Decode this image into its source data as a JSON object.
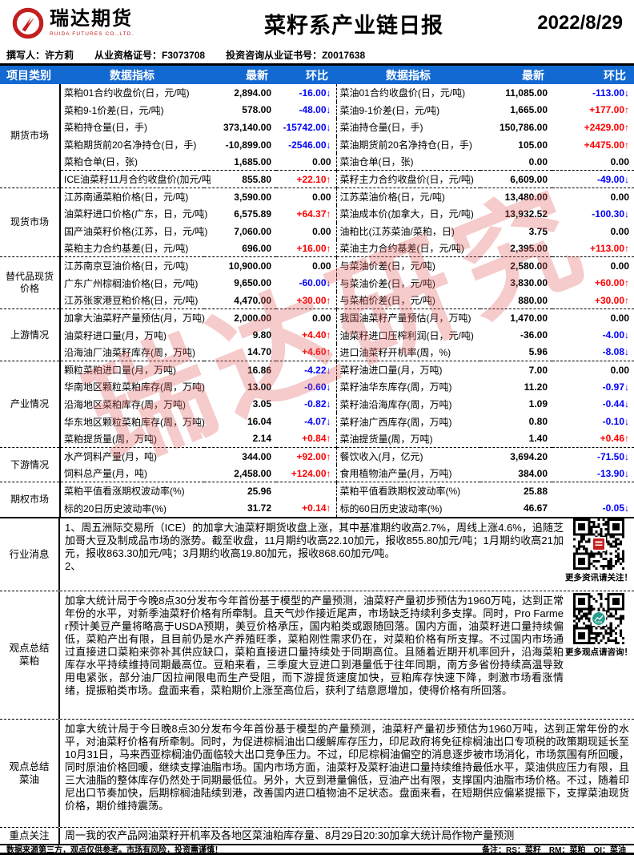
{
  "header": {
    "logo_text": "瑞达期货",
    "logo_subtext": "RUIDA FUTURES CO.,LTD.",
    "title": "菜籽系产业链日报",
    "date": "2022/8/29"
  },
  "info": {
    "author": "撰写人：许方莉",
    "cert1": "从业资格证号：F3073708",
    "cert2": "投资咨询从业证书号：Z0017638"
  },
  "table": {
    "headers": [
      "项目类别",
      "数据指标",
      "最新",
      "环比",
      "数据指标",
      "最新",
      "环比"
    ],
    "sections": [
      {
        "category": [
          "期货市场"
        ],
        "rows": [
          {
            "l": [
              "菜粕01合约收盘价(日，元/吨)",
              "2,894.00",
              "-16.00↓"
            ],
            "r": [
              "菜油01合约收盘价(日，元/吨)",
              "11,085.00",
              "-113.00↓"
            ]
          },
          {
            "l": [
              "菜粕9-1价差(日，元/吨)",
              "578.00",
              "-48.00↓"
            ],
            "r": [
              "菜油9-1价差(日，元/吨)",
              "1,665.00",
              "+177.00↑"
            ]
          },
          {
            "l": [
              "菜粕持仓量(日，手)",
              "373,140.00",
              "-15742.00↓"
            ],
            "r": [
              "菜油持仓量(日，手)",
              "150,786.00",
              "+2429.00↑"
            ]
          },
          {
            "l": [
              "菜粕期货前20名净持仓(日，手)",
              "-10,899.00",
              "-2546.00↓"
            ],
            "r": [
              "菜油期货前20名净持仓(日，手)",
              "105.00",
              "+4475.00↑"
            ]
          },
          {
            "l": [
              "菜粕仓单(日，张)",
              "1,685.00",
              "0.00"
            ],
            "r": [
              "菜油仓单(日，张)",
              "0.00",
              "0.00"
            ]
          },
          {
            "l": [
              "ICE油菜籽11月合约收盘价(加元/吨",
              "855.80",
              "+22.10↑"
            ],
            "r": [
              "菜籽主力合约收盘价(日，元/吨)",
              "6,609.00",
              "-49.00↓"
            ],
            "sep": true
          }
        ]
      },
      {
        "category": [
          "现货市场"
        ],
        "rows": [
          {
            "l": [
              "江苏南通菜粕价格(日，元/吨)",
              "3,590.00",
              "0.00"
            ],
            "r": [
              "江苏菜油价格(日，元/吨)",
              "13,480.00",
              "0.00"
            ]
          },
          {
            "l": [
              "油菜籽进口价格(广东，日，元/吨)",
              "6,575.89",
              "+64.37↑"
            ],
            "r": [
              "菜油成本价(加拿大，日，元/吨)",
              "13,932.52",
              "-100.30↓"
            ]
          },
          {
            "l": [
              "国产油菜籽价格(江苏，日，元/吨)",
              "7,060.00",
              "0.00"
            ],
            "r": [
              "油粕比(江苏菜油/菜粕，日)",
              "3.75",
              "0.00"
            ]
          },
          {
            "l": [
              "菜粕主力合约基差(日，元/吨)",
              "696.00",
              "+16.00↑"
            ],
            "r": [
              "菜油主力合约基差(日，元/吨)",
              "2,395.00",
              "+113.00↑"
            ]
          }
        ]
      },
      {
        "category": [
          "替代品现货",
          "价格"
        ],
        "rows": [
          {
            "l": [
              "江苏南京豆油价格(日，元/吨)",
              "10,900.00",
              "0.00"
            ],
            "r": [
              "与菜油价差(日，元/吨)",
              "2,580.00",
              "0.00"
            ]
          },
          {
            "l": [
              "广东广州棕榈油价格(日，元/吨)",
              "9,650.00",
              "-60.00↓"
            ],
            "r": [
              "与菜油价差(日，元/吨)",
              "3,830.00",
              "+60.00↑"
            ]
          },
          {
            "l": [
              "江苏张家港豆粕价格(日，元/吨)",
              "4,470.00",
              "+30.00↑"
            ],
            "r": [
              "与菜粕价差(日，元/吨)",
              "880.00",
              "+30.00↑"
            ]
          }
        ]
      },
      {
        "category": [
          "上游情况"
        ],
        "rows": [
          {
            "l": [
              "加拿大油菜籽产量预估(月，万吨)",
              "2,000.00",
              "0.00"
            ],
            "r": [
              "我国油菜籽产量预估(月，万吨)",
              "1,470.00",
              "0.00"
            ]
          },
          {
            "l": [
              "油菜籽进口量(月，万吨)",
              "9.80",
              "+4.40↑"
            ],
            "r": [
              "油菜籽进口压榨利润(日，元/吨)",
              "-36.00",
              "-4.00↓"
            ]
          },
          {
            "l": [
              "沿海油厂油菜籽库存(周，万吨)",
              "14.70",
              "+4.60↑"
            ],
            "r": [
              "进口油菜籽开机率(周，%)",
              "5.96",
              "-8.08↓"
            ]
          }
        ]
      },
      {
        "category": [
          "产业情况"
        ],
        "rows": [
          {
            "l": [
              "颗粒菜粕进口量(月，万吨)",
              "16.86",
              "-4.22↓"
            ],
            "r": [
              "菜籽油进口量(月，万吨)",
              "7.00",
              "0.00"
            ]
          },
          {
            "l": [
              "华南地区颗粒菜粕库存(周，万吨)",
              "13.00",
              "-0.60↓"
            ],
            "r": [
              "菜籽油华东库存(周，万吨)",
              "11.20",
              "-0.97↓"
            ]
          },
          {
            "l": [
              "沿海地区菜粕库存(周，万吨)",
              "3.05",
              "-0.82↓"
            ],
            "r": [
              "菜籽油沿海库存(周，万吨)",
              "1.09",
              "-0.44↓"
            ]
          },
          {
            "l": [
              "华东地区颗粒菜粕库存(周，万吨)",
              "16.04",
              "-4.07↓"
            ],
            "r": [
              "菜籽油广西库存(周，万吨)",
              "0.80",
              "-0.10↓"
            ]
          },
          {
            "l": [
              "菜粕提货量(周，万吨)",
              "2.14",
              "+0.84↑"
            ],
            "r": [
              "菜油提货量(周，万吨)",
              "1.40",
              "+0.46↑"
            ]
          }
        ]
      },
      {
        "category": [
          "下游情况"
        ],
        "rows": [
          {
            "l": [
              "水产饲料产量(月，吨)",
              "344.00",
              "+92.00↑"
            ],
            "r": [
              "餐饮收入(月，亿元)",
              "3,694.20",
              "-71.50↓"
            ]
          },
          {
            "l": [
              "饲料总产量(月，吨)",
              "2,458.00",
              "+124.00↑"
            ],
            "r": [
              "食用植物油产量(月，万吨)",
              "384.00",
              "-13.90↓"
            ]
          }
        ]
      },
      {
        "category": [
          "期权市场"
        ],
        "rows": [
          {
            "l": [
              "菜粕平值看涨期权波动率(%)",
              "25.96",
              ""
            ],
            "r": [
              "菜粕平值看跌期权波动率(%)",
              "25.88",
              ""
            ]
          },
          {
            "l": [
              "标的20日历史波动率(%)",
              "31.72",
              "+0.14↑"
            ],
            "r": [
              "标的60日历史波动率(%)",
              "46.67",
              "-0.05↓"
            ]
          }
        ]
      }
    ]
  },
  "notes": [
    {
      "id": "industry",
      "category": [
        "行业消息"
      ],
      "body": "1、周五洲际交易所（ICE）的加拿大油菜籽期货收盘上涨，其中基准期约收高2.7%，周线上涨4.6%，追随芝加哥大豆及制成品市场的涨势。截至收盘，11月期约收高22.10加元，报收855.80加元/吨；1月期约收高21加元，报收863.30加元/吨；3月期约收高19.80加元，报收868.60加元/吨。\n2、"
    },
    {
      "id": "rm",
      "category": [
        "观点总结",
        "菜粕"
      ],
      "body": "加拿大统计局于今晚8点30分发布今年首份基于模型的产量预测，油菜籽产量初步预估为1960万吨，达到正常年份的水平，对新季油菜籽价格有所牵制。且天气炒作接近尾声，市场缺乏持续利多支撑。同时，Pro Farmer预计美豆产量将略高于USDA预期，美豆价格承压，国内粕类或跟随回落。国内方面，油菜籽进口量持续偏低，菜粕产出有限，且目前仍是水产养殖旺季，菜粕刚性需求仍在，对菜粕价格有所支撑。不过国内市场通过直接进口菜粕来弥补其供应缺口，菜粕直接进口量持续处于同期高位。且随着近期开机率回升，沿海菜粕库存水平持续维持同期最高位。豆粕来看，三季度大豆进口到港量低于往年同期，南方多省份持续高温导致用电紧张，部分油厂因拉闸限电而生产受阻，而下游提货速度加快，豆粕库存快速下降，刺激市场看涨情绪，提振粕类市场。盘面来看，菜粕期价上涨至高位后，获利了结意愿增加，使得价格有所回落。"
    },
    {
      "id": "oi",
      "category": [
        "观点总结",
        "菜油"
      ],
      "body": "加拿大统计局于今日晚8点30分发布今年首份基于模型的产量预测，油菜籽产量初步预估为1960万吨，达到正常年份的水平，对油菜籽价格有所牵制。同时，为促进棕榈油出口缓解库存压力，印尼政府将免征棕榈油出口专项税的政策期现延长至10月31日，马来西亚棕榈油仍面临较大出口竞争压力。不过，印尼棕榈油偏空的消息逐步被市场消化，市场氛围有所回暖，同时原油价格回暖，继续支撑油脂市场。国内市场方面，油菜籽及菜籽油进口量持续维持最低水平，菜油供应压力有限，且三大油脂的整体库存仍然处于同期最低位。另外，大豆到港量偏低，豆油产出有限，支撑国内油脂市场价格。不过，随着印尼出口节奏加快，后期棕榈油陆续到港，改善国内进口植物油不足状态。盘面来看，在短期供应偏紧提振下，支撑菜油现货价格，期价维持震荡。"
    },
    {
      "id": "focus",
      "category": [
        "重点关注"
      ],
      "body": "周一我的农产品网油菜籽开机率及各地区菜油粕库存量、8月29日20:30加拿大统计局作物产量预测"
    }
  ],
  "qr_blocks": [
    {
      "caption": "更多资讯请关注！"
    },
    {
      "caption": "更多观点请咨询！"
    }
  ],
  "watermark": {
    "text": "瑞达研究"
  },
  "footer": {
    "disclaimer": "数据来源第三方，观点仅供参考。市场有风险，投资需谨慎！",
    "note": "备注：RS：菜籽　RM：菜粕　OI：菜油"
  },
  "colors": {
    "header_blue": "#1269d2",
    "up_red": "#ff0000",
    "down_blue": "#0000ff",
    "brand_red": "#c41e1e"
  }
}
